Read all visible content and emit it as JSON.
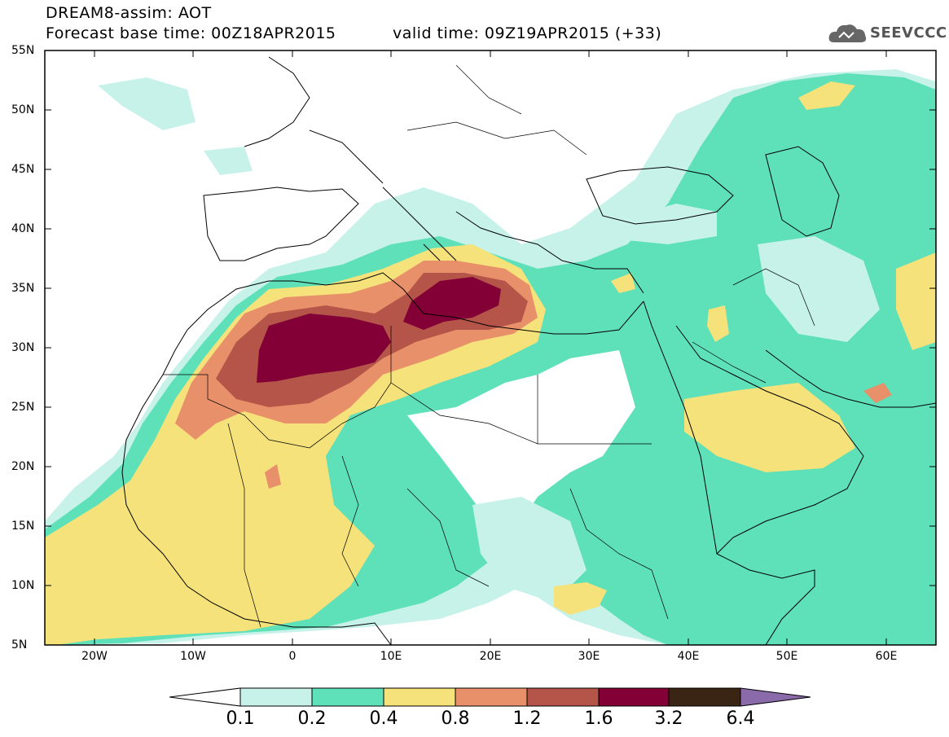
{
  "header": {
    "title_line1": "DREAM8-assim: AOT",
    "title_line2": "Forecast base time: 00Z18APR2015",
    "valid_time": "valid time: 09Z19APR2015 (+33)",
    "brand": "SEEVCCC"
  },
  "map": {
    "variable": "AOT",
    "lon_range": [
      -25,
      65
    ],
    "lat_range": [
      5,
      55
    ],
    "lat_labels": [
      "55N",
      "50N",
      "45N",
      "40N",
      "35N",
      "30N",
      "25N",
      "20N",
      "15N",
      "10N",
      "5N"
    ],
    "lon_labels": [
      "20W",
      "10W",
      "0",
      "10E",
      "20E",
      "30E",
      "40E",
      "50E",
      "60E"
    ]
  },
  "colorbar": {
    "levels": [
      "0.1",
      "0.2",
      "0.4",
      "0.8",
      "1.2",
      "1.6",
      "3.2",
      "6.4"
    ],
    "colors": [
      "#ffffff",
      "#c6f2ea",
      "#5ee0b8",
      "#f5e27a",
      "#e8906a",
      "#b55448",
      "#820035",
      "#3a2414",
      "#8a6aa8"
    ]
  }
}
